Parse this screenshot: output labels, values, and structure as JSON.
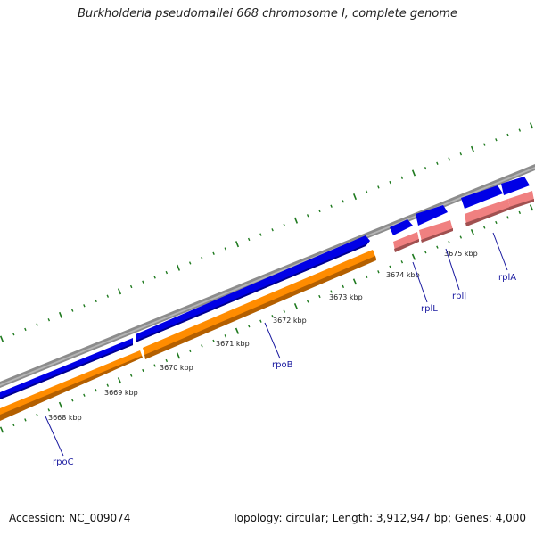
{
  "title": "Burkholderia pseudomallei 668 chromosome I, complete genome",
  "footer": {
    "accession": "Accession: NC_009074",
    "summary": "Topology: circular; Length: 3,912,947 bp; Genes: 4,000"
  },
  "colors": {
    "backbone": "#8c8c8c",
    "cds_forward": "#0000e6",
    "cds_reverse_orange": "#ff8c00",
    "cds_reverse_pink": "#f08080",
    "ticks": "#1f7a1f",
    "gene_label": "#1a1aa0"
  },
  "kbp_labels": [
    "3668 kbp",
    "3669 kbp",
    "3670 kbp",
    "3671 kbp",
    "3672 kbp",
    "3673 kbp",
    "3674 kbp",
    "3675 kbp"
  ],
  "genes": [
    {
      "name": "rpoC"
    },
    {
      "name": "rpoB"
    },
    {
      "name": "rplL"
    },
    {
      "name": "rplJ"
    },
    {
      "name": "rplA"
    }
  ]
}
